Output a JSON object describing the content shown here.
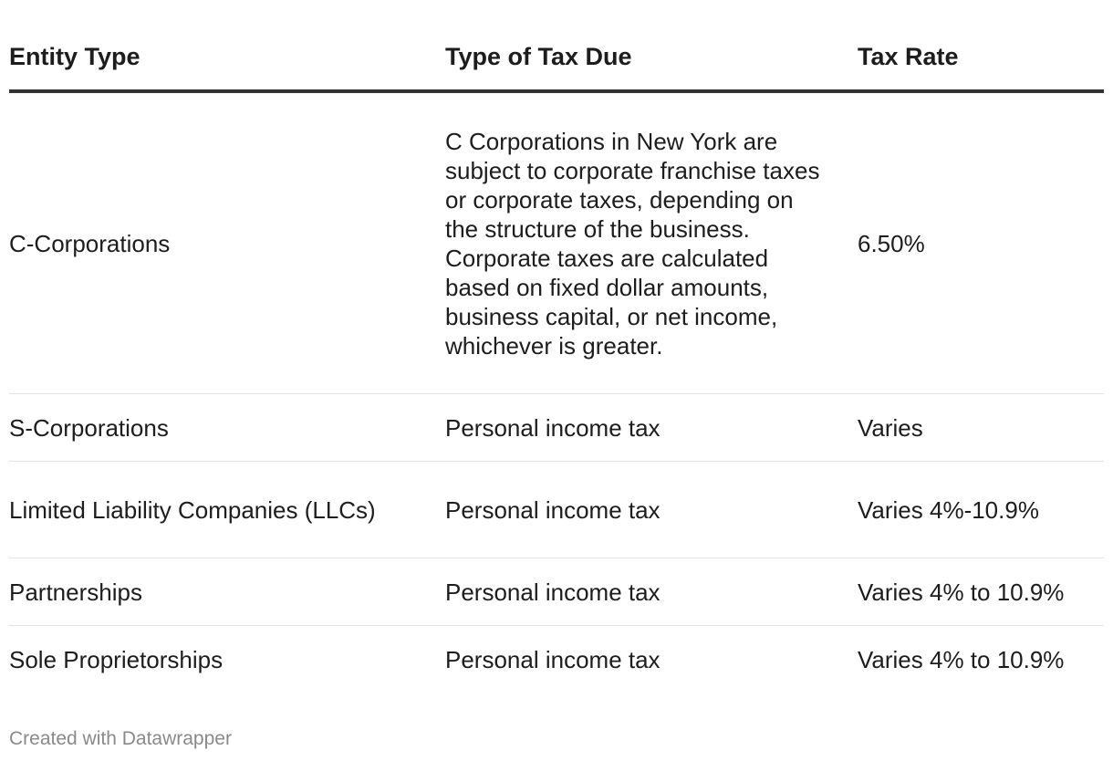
{
  "table": {
    "headers": [
      "Entity Type",
      "Type of Tax Due",
      "Tax Rate"
    ],
    "rows": [
      [
        "C-Corporations",
        "C Corporations in New York are subject to corporate franchise taxes or corporate taxes, depending on the structure of the business. Corporate taxes are calculated based on fixed dollar amounts, business capital, or net income, whichever is greater.",
        "6.50%"
      ],
      [
        "S-Corporations",
        "Personal income tax",
        "Varies"
      ],
      [
        "Limited Liability Companies (LLCs)",
        "Personal income tax",
        "Varies 4%-10.9%"
      ],
      [
        "Partnerships",
        "Personal income tax",
        "Varies 4% to 10.9%"
      ],
      [
        "Sole Proprietorships",
        "Personal income tax",
        "Varies 4% to 10.9%"
      ]
    ]
  },
  "footer": {
    "credit": "Created with Datawrapper"
  }
}
